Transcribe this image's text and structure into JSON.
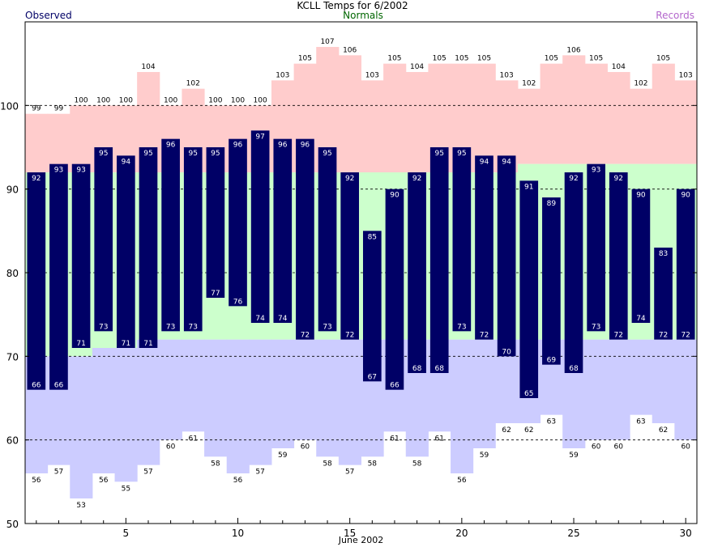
{
  "chart_data": {
    "type": "bar",
    "title": "KCLL Temps for 6/2002",
    "xlabel": "June 2002",
    "ylabel": "",
    "legend": [
      {
        "name": "Observed",
        "color": "#000066",
        "position": "top-left"
      },
      {
        "name": "Normals",
        "color": "#006600",
        "position": "top-center"
      },
      {
        "name": "Records",
        "color": "#b366cc",
        "position": "top-right"
      }
    ],
    "ylim": [
      50,
      110
    ],
    "xlim": [
      0.5,
      30.5
    ],
    "y_ticks": [
      50,
      60,
      70,
      80,
      90,
      100
    ],
    "x_ticks": [
      5,
      10,
      15,
      20,
      25,
      30
    ],
    "grid": "dashed horizontal lines at 60, 70, 80, 90, 100",
    "days": [
      1,
      2,
      3,
      4,
      5,
      6,
      7,
      8,
      9,
      10,
      11,
      12,
      13,
      14,
      15,
      16,
      17,
      18,
      19,
      20,
      21,
      22,
      23,
      24,
      25,
      26,
      27,
      28,
      29,
      30
    ],
    "series": [
      {
        "name": "Observed High",
        "values": [
          92,
          93,
          93,
          95,
          94,
          95,
          96,
          95,
          95,
          96,
          97,
          96,
          96,
          95,
          92,
          85,
          90,
          92,
          95,
          95,
          94,
          94,
          91,
          89,
          92,
          93,
          92,
          90,
          83,
          90
        ]
      },
      {
        "name": "Observed Low",
        "values": [
          66,
          66,
          71,
          73,
          71,
          71,
          73,
          73,
          77,
          76,
          74,
          74,
          72,
          73,
          72,
          67,
          66,
          68,
          68,
          73,
          72,
          70,
          65,
          69,
          68,
          73,
          72,
          74,
          72,
          72
        ]
      },
      {
        "name": "Normal High",
        "values": [
          92,
          92,
          92,
          92,
          92,
          92,
          92,
          92,
          92,
          92,
          92,
          92,
          92,
          92,
          92,
          92,
          92,
          92,
          92,
          92,
          92,
          92,
          93,
          93,
          93,
          93,
          93,
          93,
          93,
          93
        ]
      },
      {
        "name": "Normal Low",
        "values": [
          70,
          70,
          70,
          71,
          71,
          72,
          72,
          72,
          72,
          72,
          72,
          72,
          72,
          72,
          72,
          72,
          72,
          72,
          72,
          72,
          72,
          72,
          72,
          72,
          72,
          72,
          72,
          72,
          72,
          72
        ]
      },
      {
        "name": "Record High",
        "values": [
          99,
          99,
          100,
          100,
          100,
          104,
          100,
          102,
          100,
          100,
          100,
          103,
          105,
          107,
          106,
          103,
          105,
          104,
          105,
          105,
          105,
          103,
          102,
          105,
          106,
          105,
          104,
          102,
          105,
          103
        ]
      },
      {
        "name": "Record Low",
        "values": [
          56,
          57,
          53,
          56,
          55,
          57,
          60,
          61,
          58,
          56,
          57,
          59,
          60,
          58,
          57,
          58,
          61,
          58,
          61,
          56,
          59,
          62,
          62,
          63,
          59,
          60,
          60,
          63,
          62,
          60
        ]
      }
    ],
    "colors": {
      "observed_bar": "#000066",
      "normal_band": "#ccffcc",
      "record_high_band": "#ffcccc",
      "record_low_band": "#ccccff",
      "normals_label": "#006600",
      "records_label": "#b366cc",
      "observed_label": "#000066"
    }
  }
}
